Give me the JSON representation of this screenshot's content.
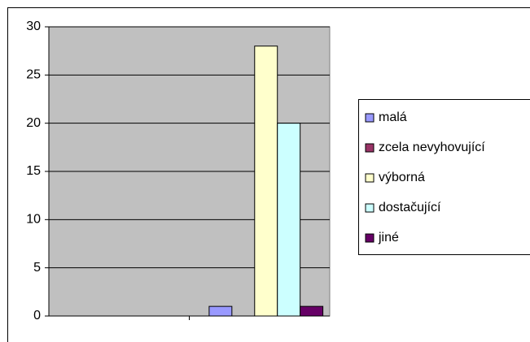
{
  "chart_data": {
    "type": "bar",
    "categories": [
      null,
      null
    ],
    "series": [
      {
        "name": "malá",
        "color": "#9999ff",
        "values": [
          null,
          1
        ]
      },
      {
        "name": "zcela nevyhovující",
        "color": "#993366",
        "values": [
          null,
          0
        ]
      },
      {
        "name": "výborná",
        "color": "#ffffcc",
        "values": [
          null,
          28
        ]
      },
      {
        "name": "dostačující",
        "color": "#ccffff",
        "values": [
          null,
          20
        ]
      },
      {
        "name": "jiné",
        "color": "#660066",
        "values": [
          null,
          1
        ]
      }
    ],
    "ylim": [
      0,
      30
    ],
    "yticks": [
      0,
      5,
      10,
      15,
      20,
      25,
      30
    ],
    "grid": true,
    "legend": "right"
  }
}
